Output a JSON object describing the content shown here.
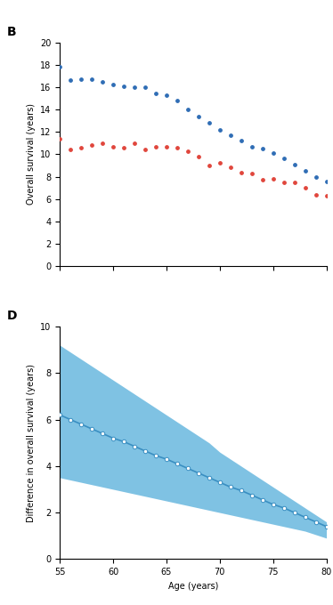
{
  "chart_data": [
    {
      "type": "scatter",
      "title": "B",
      "y_label": "Overall survival (years)",
      "x": [
        55,
        56,
        57,
        58,
        59,
        60,
        61,
        62,
        63,
        64,
        65,
        66,
        67,
        68,
        69,
        70,
        71,
        72,
        73,
        74,
        75,
        76,
        77,
        78,
        79,
        80
      ],
      "series": [
        {
          "color": "#2f6db5",
          "marker": "o",
          "values": [
            17.8,
            16.6,
            16.7,
            16.7,
            16.5,
            16.2,
            16.1,
            16.0,
            16.0,
            15.4,
            15.3,
            14.8,
            14.0,
            13.4,
            12.8,
            12.2,
            11.7,
            11.2,
            10.7,
            10.5,
            10.1,
            9.6,
            9.1,
            8.5,
            8.0,
            7.6
          ]
        },
        {
          "color": "#e0463c",
          "marker": "o",
          "values": [
            11.4,
            10.4,
            10.6,
            10.8,
            11.0,
            10.7,
            10.6,
            11.0,
            10.4,
            10.7,
            10.7,
            10.6,
            10.3,
            9.8,
            9.0,
            9.2,
            8.8,
            8.4,
            8.3,
            7.7,
            7.8,
            7.5,
            7.5,
            7.0,
            6.4,
            6.3
          ]
        }
      ],
      "xlim": [
        55,
        80
      ],
      "xticks": [
        55,
        60,
        65,
        70,
        75,
        80
      ],
      "ylim": [
        0,
        20
      ],
      "yticks": [
        0,
        2,
        4,
        6,
        8,
        10,
        12,
        14,
        16,
        18,
        20
      ],
      "tick_labels": "y",
      "grid": false
    },
    {
      "type": "line",
      "title": "D",
      "x_label": "Age (years)",
      "y_label": "Difference in overall survival (years)",
      "x": [
        55,
        56,
        57,
        58,
        59,
        60,
        61,
        62,
        63,
        64,
        65,
        66,
        67,
        68,
        69,
        70,
        71,
        72,
        73,
        74,
        75,
        76,
        77,
        78,
        79,
        80
      ],
      "series": [
        {
          "color": "#3a8fc2",
          "marker": "o",
          "values": [
            6.2,
            6.0,
            5.8,
            5.6,
            5.4,
            5.2,
            5.05,
            4.85,
            4.65,
            4.45,
            4.3,
            4.1,
            3.9,
            3.7,
            3.5,
            3.3,
            3.1,
            2.95,
            2.75,
            2.55,
            2.35,
            2.2,
            2.0,
            1.8,
            1.6,
            1.4
          ],
          "ci_lower": [
            3.5,
            3.4,
            3.3,
            3.2,
            3.1,
            3.0,
            2.9,
            2.8,
            2.7,
            2.6,
            2.5,
            2.4,
            2.3,
            2.2,
            2.1,
            2.0,
            1.9,
            1.8,
            1.7,
            1.6,
            1.5,
            1.4,
            1.3,
            1.2,
            1.05,
            0.9
          ],
          "ci_upper": [
            9.2,
            8.9,
            8.6,
            8.3,
            8.0,
            7.7,
            7.4,
            7.1,
            6.8,
            6.5,
            6.2,
            5.9,
            5.6,
            5.3,
            5.0,
            4.6,
            4.3,
            4.0,
            3.7,
            3.4,
            3.1,
            2.8,
            2.5,
            2.2,
            1.9,
            1.6
          ]
        }
      ],
      "xlim": [
        55,
        80
      ],
      "xticks": [
        55,
        60,
        65,
        70,
        75,
        80
      ],
      "ylim": [
        0,
        10
      ],
      "yticks": [
        0,
        2,
        4,
        6,
        8,
        10
      ],
      "grid": false
    }
  ]
}
